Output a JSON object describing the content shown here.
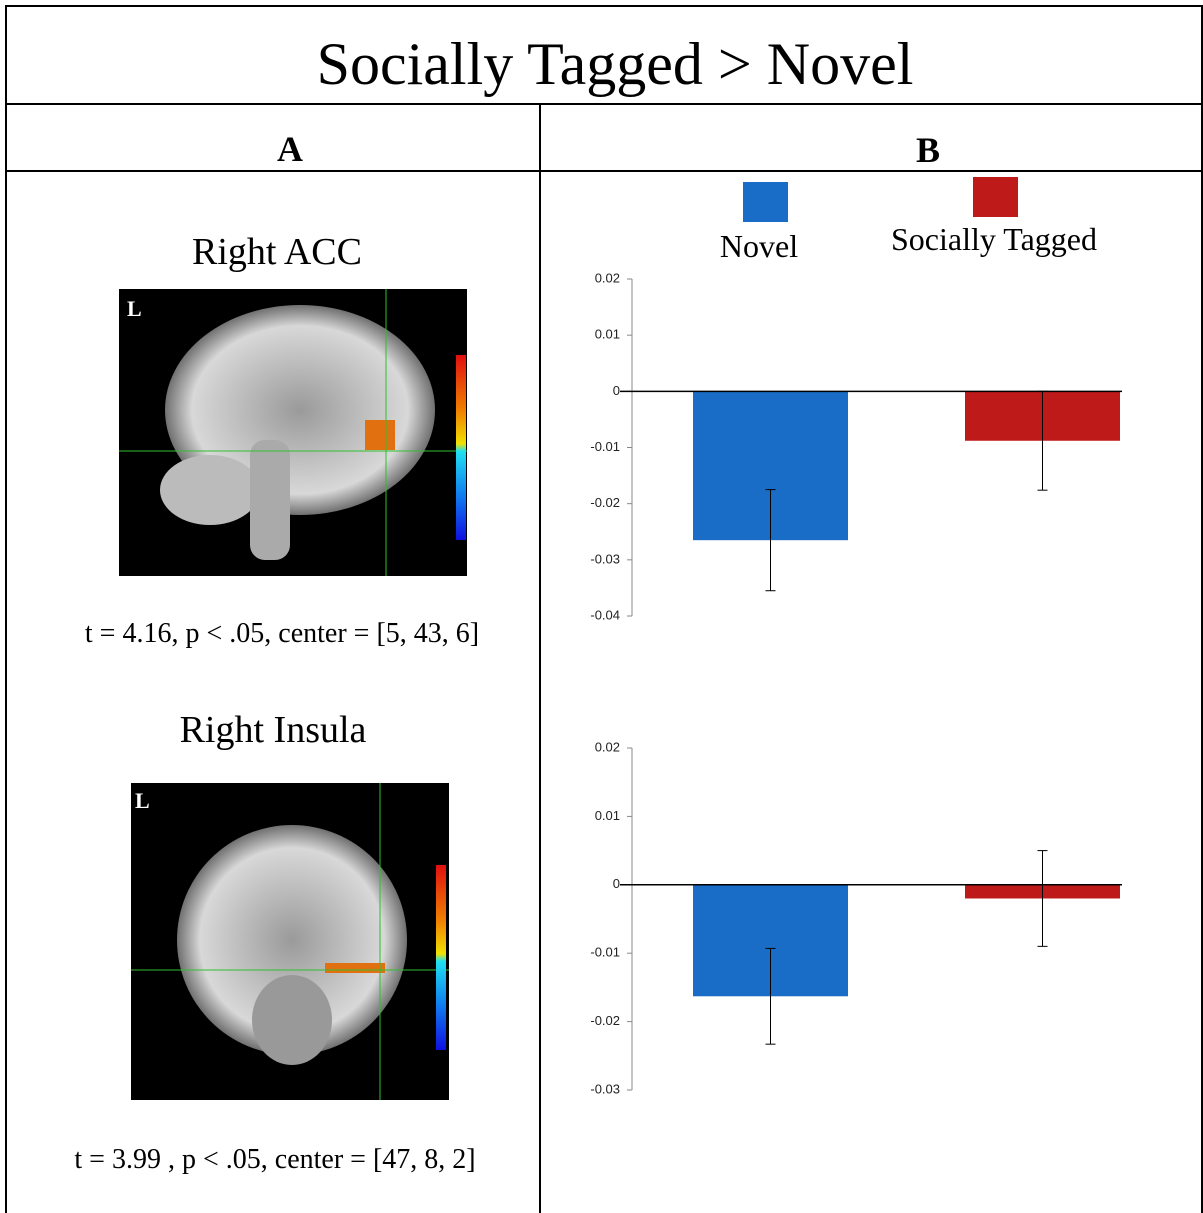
{
  "title": "Socially Tagged > Novel",
  "panel_a": {
    "label": "A",
    "images": [
      {
        "title": "Right ACC",
        "marker": "L",
        "stats": "t = 4.16, p < .05, center = [5, 43, 6]"
      },
      {
        "title": "Right Insula",
        "marker": "L",
        "stats": "t = 3.99 , p < .05, center = [47, 8, 2]"
      }
    ]
  },
  "panel_b": {
    "label": "B"
  },
  "legend": [
    {
      "name": "Novel",
      "color": "#1a6dc6"
    },
    {
      "name": "Socially Tagged",
      "color": "#bf1a1a"
    }
  ],
  "chart_data": [
    {
      "type": "bar",
      "values": [
        -0.0265,
        -0.0088
      ],
      "errors": [
        0.009,
        0.0088
      ],
      "ylim": [
        -0.04,
        0.02
      ],
      "yticks": [
        0.02,
        0.01,
        0,
        -0.01,
        -0.02,
        -0.03,
        -0.04
      ]
    },
    {
      "type": "bar",
      "values": [
        -0.0163,
        -0.002
      ],
      "errors": [
        0.007,
        0.007
      ],
      "ylim": [
        -0.03,
        0.02
      ],
      "yticks": [
        0.02,
        0.01,
        0,
        -0.01,
        -0.02,
        -0.03
      ]
    }
  ]
}
